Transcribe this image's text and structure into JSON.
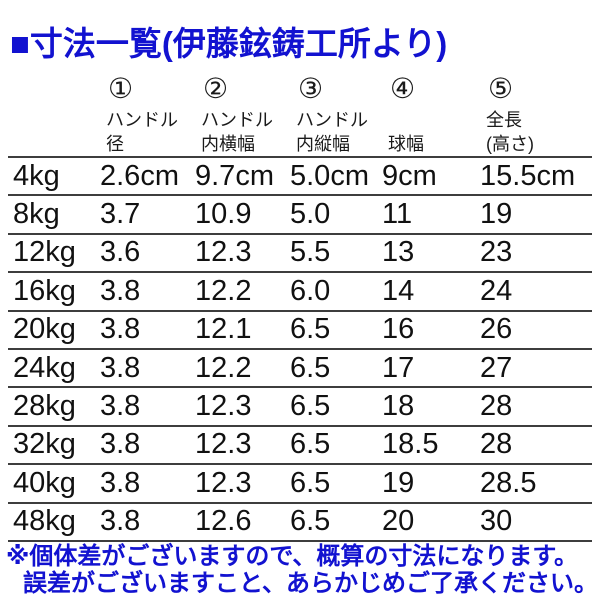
{
  "chart_data": {
    "type": "table",
    "title": "■寸法一覧(伊藤鉉鋳工所より)",
    "columns": [
      {
        "no": "①",
        "line1": "ハンドル",
        "line2": "径"
      },
      {
        "no": "②",
        "line1": "ハンドル",
        "line2": "内横幅"
      },
      {
        "no": "③",
        "line1": "ハンドル",
        "line2": "内縦幅"
      },
      {
        "no": "④",
        "line1": "",
        "line2": "球幅"
      },
      {
        "no": "⑤",
        "line1": "全長",
        "line2": "(高さ)"
      }
    ],
    "rows": [
      {
        "weight": "4kg",
        "handle_diameter": "2.6cm",
        "handle_inner_width": "9.7cm",
        "handle_inner_height": "5.0cm",
        "ball_width": "9cm",
        "total_length": "15.5cm"
      },
      {
        "weight": "8kg",
        "handle_diameter": "3.7",
        "handle_inner_width": "10.9",
        "handle_inner_height": "5.0",
        "ball_width": "11",
        "total_length": "19"
      },
      {
        "weight": "12kg",
        "handle_diameter": "3.6",
        "handle_inner_width": "12.3",
        "handle_inner_height": "5.5",
        "ball_width": "13",
        "total_length": "23"
      },
      {
        "weight": "16kg",
        "handle_diameter": "3.8",
        "handle_inner_width": "12.2",
        "handle_inner_height": "6.0",
        "ball_width": "14",
        "total_length": "24"
      },
      {
        "weight": "20kg",
        "handle_diameter": "3.8",
        "handle_inner_width": "12.1",
        "handle_inner_height": "6.5",
        "ball_width": "16",
        "total_length": "26"
      },
      {
        "weight": "24kg",
        "handle_diameter": "3.8",
        "handle_inner_width": "12.2",
        "handle_inner_height": "6.5",
        "ball_width": "17",
        "total_length": "27"
      },
      {
        "weight": "28kg",
        "handle_diameter": "3.8",
        "handle_inner_width": "12.3",
        "handle_inner_height": "6.5",
        "ball_width": "18",
        "total_length": "28"
      },
      {
        "weight": "32kg",
        "handle_diameter": "3.8",
        "handle_inner_width": "12.3",
        "handle_inner_height": "6.5",
        "ball_width": "18.5",
        "total_length": "28"
      },
      {
        "weight": "40kg",
        "handle_diameter": "3.8",
        "handle_inner_width": "12.3",
        "handle_inner_height": "6.5",
        "ball_width": "19",
        "total_length": "28.5"
      },
      {
        "weight": "48kg",
        "handle_diameter": "3.8",
        "handle_inner_width": "12.6",
        "handle_inner_height": "6.5",
        "ball_width": "20",
        "total_length": "30"
      }
    ],
    "footnotes": [
      "※個体差がございますので、概算の寸法になります。",
      "誤差がございますこと、あらかじめご了承ください。"
    ]
  },
  "colors": {
    "accent_blue": "#1212d0",
    "table_text": "#111111",
    "grid_line": "#3d3d3d",
    "background": "#ffffff"
  }
}
